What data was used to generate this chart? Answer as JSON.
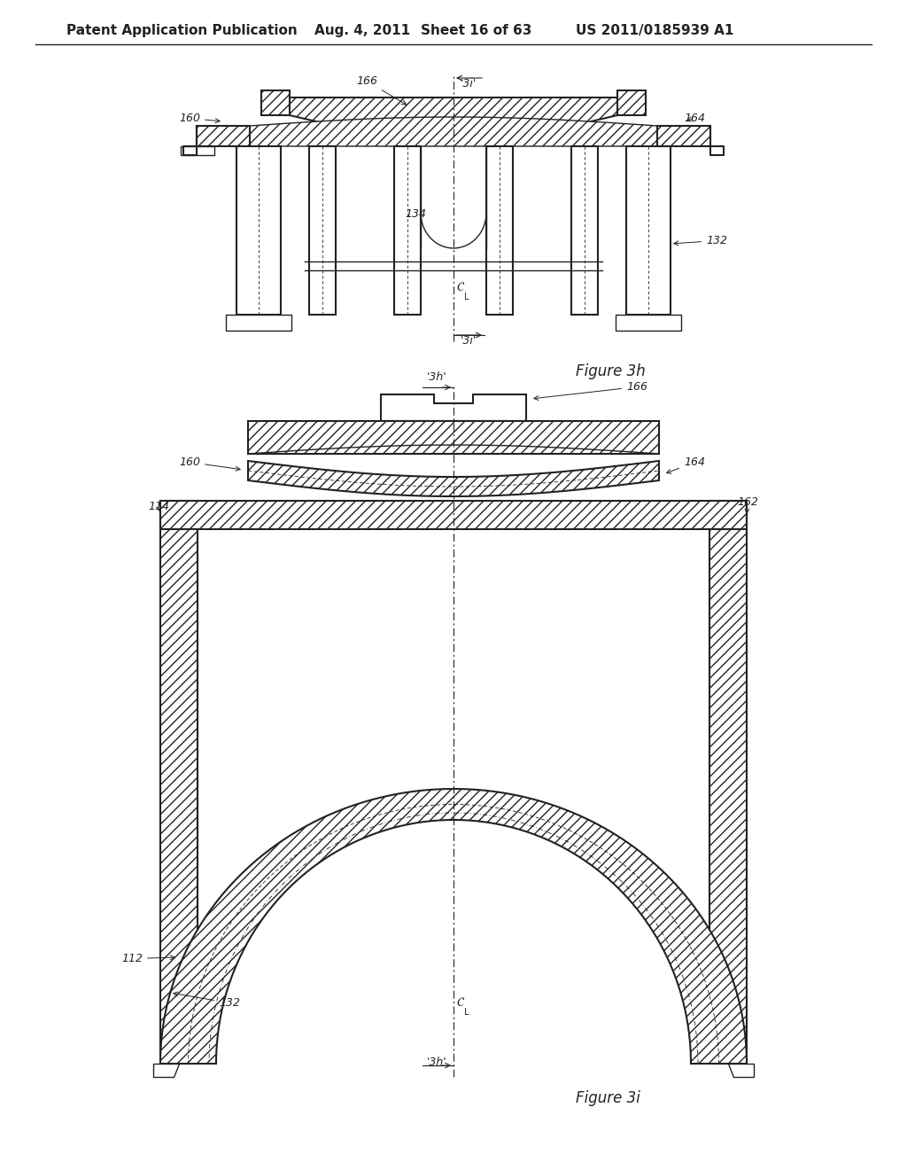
{
  "background_color": "#ffffff",
  "header_text": "Patent Application Publication",
  "header_date": "Aug. 4, 2011",
  "header_sheet": "Sheet 16 of 63",
  "header_patent": "US 2011/0185939 A1",
  "fig3h_label": "Figure 3h",
  "fig3i_label": "Figure 3i",
  "line_color": "#222222",
  "font_size_header": 11,
  "font_size_label": 10,
  "font_size_fig": 12
}
